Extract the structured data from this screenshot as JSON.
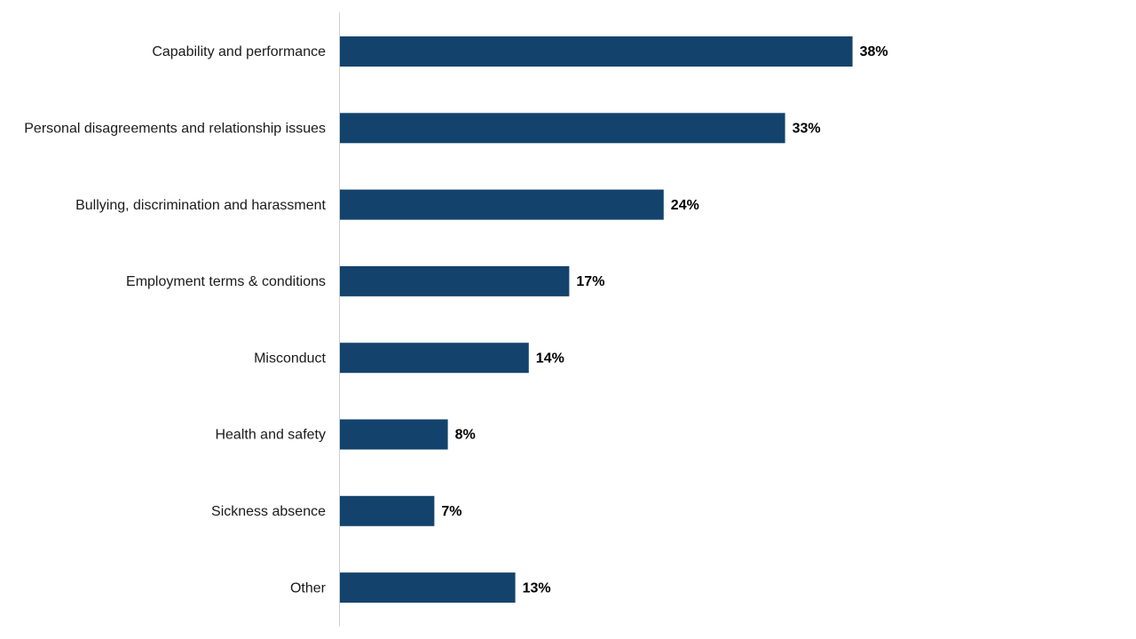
{
  "chart_data": {
    "type": "bar",
    "orientation": "horizontal",
    "categories": [
      "Capability and performance",
      "Personal disagreements and relationship issues",
      "Bullying, discrimination and harassment",
      "Employment terms & conditions",
      "Misconduct",
      "Health and safety",
      "Sickness absence",
      "Other"
    ],
    "values": [
      38,
      33,
      24,
      17,
      14,
      8,
      7,
      13
    ],
    "value_labels": [
      "38%",
      "33%",
      "24%",
      "17%",
      "14%",
      "8%",
      "7%",
      "13%"
    ],
    "color": "#13436c"
  }
}
